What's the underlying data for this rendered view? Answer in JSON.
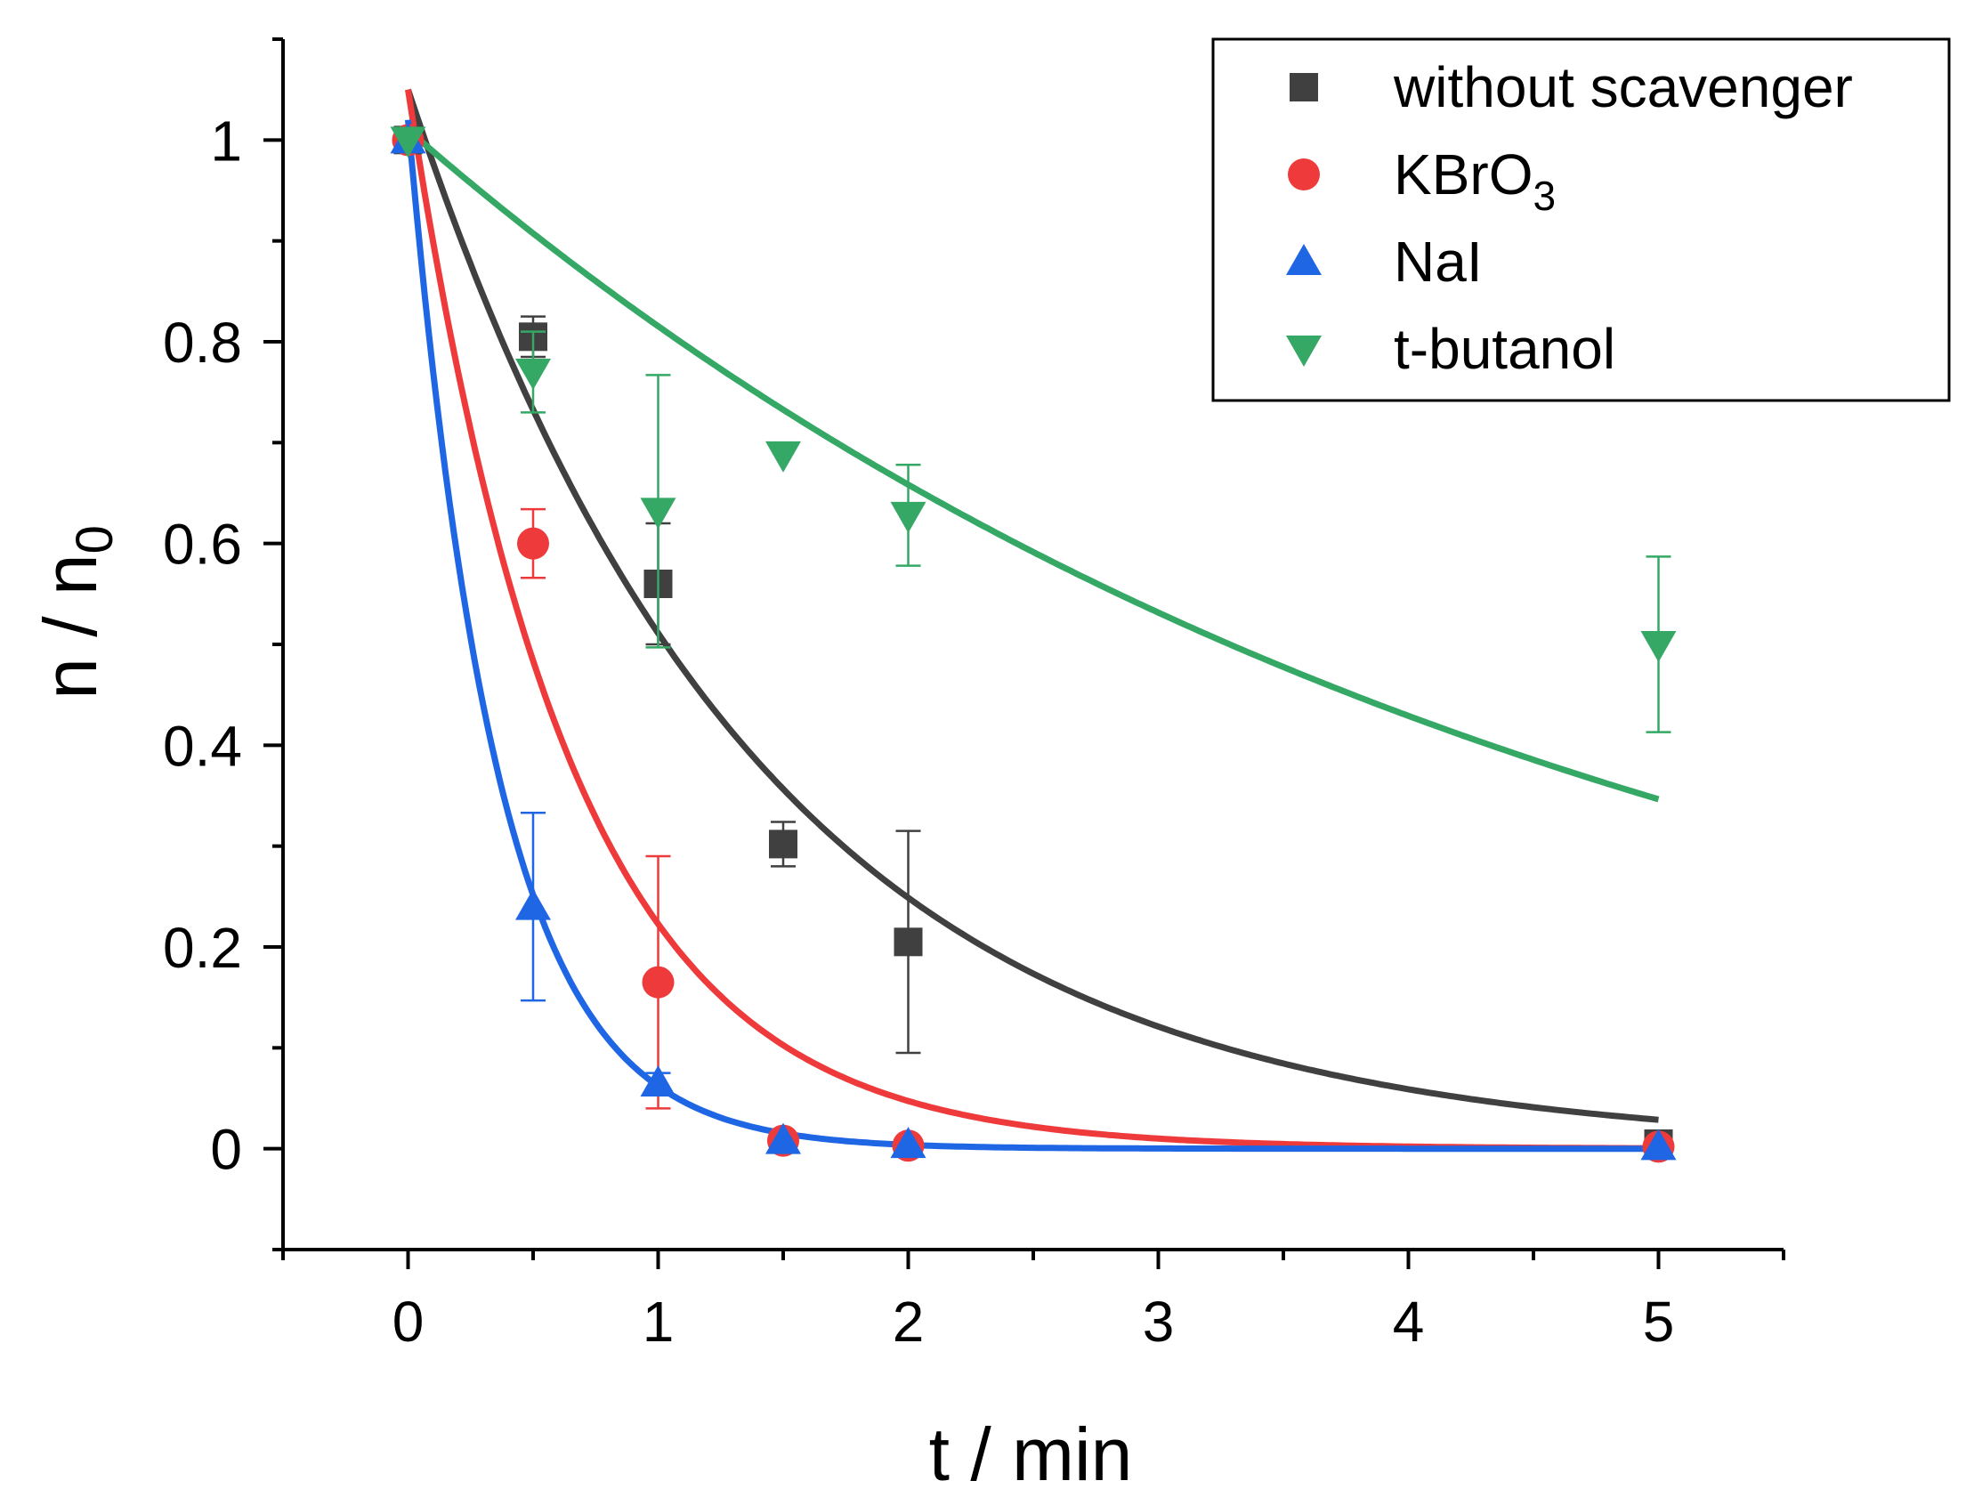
{
  "chart_data": {
    "type": "scatter",
    "title": "",
    "xlabel": "t / min",
    "ylabel_main": "n / n",
    "ylabel_sub": "0",
    "xlim": [
      -0.5,
      5.5
    ],
    "ylim": [
      -0.1,
      1.1
    ],
    "x_ticks": [
      0,
      1,
      2,
      3,
      4,
      5
    ],
    "x_tick_labels": [
      "0",
      "1",
      "2",
      "3",
      "4",
      "5"
    ],
    "y_ticks": [
      0,
      0.2,
      0.4,
      0.6,
      0.8,
      1
    ],
    "y_tick_labels": [
      "0",
      "0.2",
      "0.4",
      "0.6",
      "0.8",
      "1"
    ],
    "grid": false,
    "legend_position": "top-right",
    "series": [
      {
        "name": "without scavenger",
        "legend_main": "without scavenger",
        "legend_sub": "",
        "marker": "square",
        "color": "#404040",
        "points": [
          {
            "x": 0,
            "y": 1.0,
            "err": 0
          },
          {
            "x": 0.5,
            "y": 0.805,
            "err": 0.02
          },
          {
            "x": 1,
            "y": 0.56,
            "err": 0.06
          },
          {
            "x": 1.5,
            "y": 0.302,
            "err": 0.022
          },
          {
            "x": 2,
            "y": 0.205,
            "err": 0.11
          },
          {
            "x": 5,
            "y": 0.005,
            "err": 0
          }
        ],
        "fit": {
          "a": 1.05,
          "k": 0.72
        }
      },
      {
        "name": "KBrO3",
        "legend_main": "KBrO",
        "legend_sub": "3",
        "marker": "circle",
        "color": "#ee3a3a",
        "points": [
          {
            "x": 0,
            "y": 1.0,
            "err": 0
          },
          {
            "x": 0.5,
            "y": 0.6,
            "err": 0.034
          },
          {
            "x": 1,
            "y": 0.165,
            "err": 0.125
          },
          {
            "x": 1.5,
            "y": 0.008,
            "err": 0
          },
          {
            "x": 2,
            "y": 0.003,
            "err": 0
          },
          {
            "x": 5,
            "y": 0.002,
            "err": 0
          }
        ],
        "fit": {
          "a": 1.05,
          "k": 1.55
        }
      },
      {
        "name": "NaI",
        "legend_main": "NaI",
        "legend_sub": "",
        "marker": "triangle-up",
        "color": "#1f66e5",
        "points": [
          {
            "x": 0,
            "y": 1.0,
            "err": 0
          },
          {
            "x": 0.5,
            "y": 0.24,
            "err": 0.093
          },
          {
            "x": 1,
            "y": 0.065,
            "err": 0.01
          },
          {
            "x": 1.5,
            "y": 0.008,
            "err": 0
          },
          {
            "x": 2,
            "y": 0.004,
            "err": 0
          },
          {
            "x": 5,
            "y": 0.002,
            "err": 0
          }
        ],
        "fit": {
          "a": 1.02,
          "k": 2.8
        }
      },
      {
        "name": "t-butanol",
        "legend_main": "t-butanol",
        "legend_sub": "",
        "marker": "triangle-down",
        "color": "#35a865",
        "points": [
          {
            "x": 0,
            "y": 1.0,
            "err": 0
          },
          {
            "x": 0.5,
            "y": 0.77,
            "err": 0.04
          },
          {
            "x": 1,
            "y": 0.632,
            "err": 0.135
          },
          {
            "x": 1.5,
            "y": 0.688,
            "err": 0
          },
          {
            "x": 2,
            "y": 0.628,
            "err": 0.05
          },
          {
            "x": 5,
            "y": 0.5,
            "err": 0.087
          }
        ],
        "fit": {
          "a": 1.01,
          "k": 0.214
        }
      }
    ]
  }
}
